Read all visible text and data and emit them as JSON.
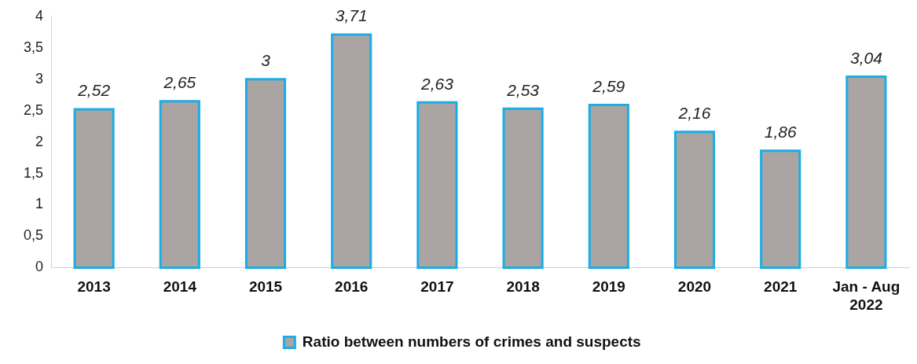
{
  "chart_data": {
    "type": "bar",
    "categories": [
      "2013",
      "2014",
      "2015",
      "2016",
      "2017",
      "2018",
      "2019",
      "2020",
      "2021",
      "Jan - Aug 2022"
    ],
    "series": [
      {
        "name": "Ratio between numbers of crimes and suspects",
        "color": "#aaa5a3",
        "values": [
          2.52,
          2.65,
          3,
          3.71,
          2.63,
          2.53,
          2.59,
          2.16,
          1.86,
          3.04
        ],
        "value_labels": [
          "2,52",
          "2,65",
          "3",
          "3,71",
          "2,63",
          "2,53",
          "2,59",
          "2,16",
          "1,86",
          "3,04"
        ]
      }
    ],
    "ylim": [
      0,
      4
    ],
    "yticks": [
      0,
      {
        "value": 0.5,
        "label": "0,5"
      },
      1,
      {
        "value": 1.5,
        "label": "1,5"
      },
      2,
      {
        "value": 2.5,
        "label": "2,5"
      },
      3,
      {
        "value": 3.5,
        "label": "3,5"
      },
      4
    ],
    "grid": false,
    "legend": "bottom"
  }
}
